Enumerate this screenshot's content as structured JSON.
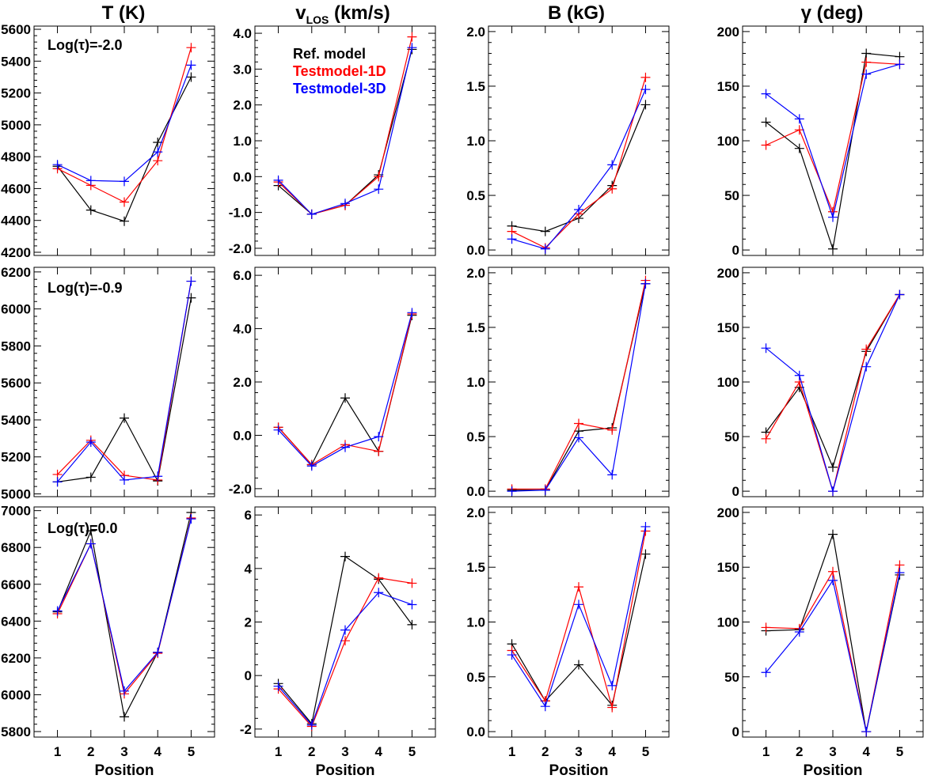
{
  "chart_data": {
    "type": "line",
    "x": [
      1,
      2,
      3,
      4,
      5
    ],
    "xlabel": "Position",
    "xticks": [
      "1",
      "2",
      "3",
      "4",
      "5"
    ],
    "colors": {
      "Ref. model": "#000000",
      "Testmodel-1D": "#ff0000",
      "Testmodel-3D": "#0000ff"
    },
    "legend": [
      "Ref. model",
      "Testmodel-1D",
      "Testmodel-3D"
    ],
    "legend_location": "top-left of row 1, column 2",
    "row_labels": [
      "Log(τ)=-2.0",
      "Log(τ)=-0.9",
      "Log(τ)=0.0"
    ],
    "columns": [
      {
        "title": "T (K)",
        "rows": [
          {
            "ylim": [
              4180,
              5620
            ],
            "yticks": [
              "4200",
              "4400",
              "4600",
              "4800",
              "5000",
              "5200",
              "5400",
              "5600"
            ],
            "ytick_values": [
              4200,
              4400,
              4600,
              4800,
              5000,
              5200,
              5400,
              5600
            ],
            "series": [
              {
                "name": "Ref. model",
                "values": [
                  4740,
                  4465,
                  4395,
                  4890,
                  5300
                ]
              },
              {
                "name": "Testmodel-1D",
                "values": [
                  4725,
                  4620,
                  4515,
                  4775,
                  5485
                ]
              },
              {
                "name": "Testmodel-3D",
                "values": [
                  4750,
                  4650,
                  4645,
                  4830,
                  5375
                ]
              }
            ]
          },
          {
            "ylim": [
              4985,
              6225
            ],
            "yticks": [
              "5000",
              "5200",
              "5400",
              "5600",
              "5800",
              "6000",
              "6200"
            ],
            "ytick_values": [
              5000,
              5200,
              5400,
              5600,
              5800,
              6000,
              6200
            ],
            "series": [
              {
                "name": "Ref. model",
                "values": [
                  5065,
                  5090,
                  5410,
                  5070,
                  6060
                ]
              },
              {
                "name": "Testmodel-1D",
                "values": [
                  5105,
                  5290,
                  5100,
                  5075,
                  6150
                ]
              },
              {
                "name": "Testmodel-3D",
                "values": [
                  5065,
                  5280,
                  5075,
                  5095,
                  6150
                ]
              }
            ]
          },
          {
            "ylim": [
              5770,
              7020
            ],
            "yticks": [
              "5800",
              "6000",
              "6200",
              "6400",
              "6600",
              "6800",
              "7000"
            ],
            "ytick_values": [
              5800,
              6000,
              6200,
              6400,
              6600,
              6800,
              7000
            ],
            "series": [
              {
                "name": "Ref. model",
                "values": [
                  6450,
                  6890,
                  5880,
                  6230,
                  6990
                ]
              },
              {
                "name": "Testmodel-1D",
                "values": [
                  6440,
                  6820,
                  6005,
                  6225,
                  6960
                ]
              },
              {
                "name": "Testmodel-3D",
                "values": [
                  6455,
                  6820,
                  6020,
                  6230,
                  6955
                ]
              }
            ]
          }
        ]
      },
      {
        "title": "v",
        "title_sub": "LOS",
        "title_unit": " (km/s)",
        "rows": [
          {
            "ylim": [
              -2.2,
              4.2
            ],
            "yticks": [
              "-2.0",
              "-1.0",
              "0.0",
              "1.0",
              "2.0",
              "3.0",
              "4.0"
            ],
            "ytick_values": [
              -2,
              -1,
              0,
              1,
              2,
              3,
              4
            ],
            "series": [
              {
                "name": "Ref. model",
                "values": [
                  -0.25,
                  -1.05,
                  -0.8,
                  0.05,
                  3.55
                ]
              },
              {
                "name": "Testmodel-1D",
                "values": [
                  -0.15,
                  -1.05,
                  -0.8,
                  0.0,
                  3.9
                ]
              },
              {
                "name": "Testmodel-3D",
                "values": [
                  -0.1,
                  -1.05,
                  -0.75,
                  -0.35,
                  3.6
                ]
              }
            ]
          },
          {
            "ylim": [
              -2.3,
              6.3
            ],
            "yticks": [
              "-2.0",
              "0.0",
              "2.0",
              "4.0",
              "6.0"
            ],
            "ytick_values": [
              -2,
              0,
              2,
              4,
              6
            ],
            "series": [
              {
                "name": "Ref. model",
                "values": [
                  0.3,
                  -1.1,
                  1.4,
                  -0.6,
                  4.5
                ]
              },
              {
                "name": "Testmodel-1D",
                "values": [
                  0.3,
                  -1.1,
                  -0.35,
                  -0.6,
                  4.55
                ]
              },
              {
                "name": "Testmodel-3D",
                "values": [
                  0.2,
                  -1.15,
                  -0.45,
                  -0.05,
                  4.6
                ]
              }
            ]
          },
          {
            "ylim": [
              -2.3,
              6.3
            ],
            "yticks": [
              "-2",
              "0",
              "2",
              "4",
              "6"
            ],
            "ytick_values": [
              -2,
              0,
              2,
              4,
              6
            ],
            "series": [
              {
                "name": "Ref. model",
                "values": [
                  -0.3,
                  -1.8,
                  4.45,
                  3.6,
                  1.9
                ]
              },
              {
                "name": "Testmodel-1D",
                "values": [
                  -0.5,
                  -1.9,
                  1.3,
                  3.65,
                  3.45
                ]
              },
              {
                "name": "Testmodel-3D",
                "values": [
                  -0.4,
                  -1.85,
                  1.7,
                  3.1,
                  2.65
                ]
              }
            ]
          }
        ]
      },
      {
        "title": "B (kG)",
        "rows": [
          {
            "ylim": [
              -0.05,
              2.05
            ],
            "yticks": [
              "0.0",
              "0.5",
              "1.0",
              "1.5",
              "2.0"
            ],
            "ytick_values": [
              0,
              0.5,
              1,
              1.5,
              2
            ],
            "series": [
              {
                "name": "Ref. model",
                "values": [
                  0.22,
                  0.17,
                  0.29,
                  0.59,
                  1.33
                ]
              },
              {
                "name": "Testmodel-1D",
                "values": [
                  0.17,
                  0.02,
                  0.33,
                  0.56,
                  1.58
                ]
              },
              {
                "name": "Testmodel-3D",
                "values": [
                  0.1,
                  0.01,
                  0.37,
                  0.78,
                  1.47
                ]
              }
            ]
          },
          {
            "ylim": [
              -0.05,
              2.05
            ],
            "yticks": [
              "0.0",
              "0.5",
              "1.0",
              "1.5",
              "2.0"
            ],
            "ytick_values": [
              0,
              0.5,
              1,
              1.5,
              2
            ],
            "series": [
              {
                "name": "Ref. model",
                "values": [
                  0.01,
                  0.01,
                  0.55,
                  0.58,
                  1.9
                ]
              },
              {
                "name": "Testmodel-1D",
                "values": [
                  0.02,
                  0.02,
                  0.62,
                  0.56,
                  1.93
                ]
              },
              {
                "name": "Testmodel-3D",
                "values": [
                  0.0,
                  0.01,
                  0.49,
                  0.15,
                  1.9
                ]
              }
            ]
          },
          {
            "ylim": [
              -0.05,
              2.05
            ],
            "yticks": [
              "0.0",
              "0.5",
              "1.0",
              "1.5",
              "2.0"
            ],
            "ytick_values": [
              0,
              0.5,
              1,
              1.5,
              2
            ],
            "series": [
              {
                "name": "Ref. model",
                "values": [
                  0.8,
                  0.28,
                  0.61,
                  0.24,
                  1.62
                ]
              },
              {
                "name": "Testmodel-1D",
                "values": [
                  0.74,
                  0.28,
                  1.32,
                  0.22,
                  1.83
                ]
              },
              {
                "name": "Testmodel-3D",
                "values": [
                  0.7,
                  0.23,
                  1.16,
                  0.42,
                  1.87
                ]
              }
            ]
          }
        ]
      },
      {
        "title": "γ (deg)",
        "rows": [
          {
            "ylim": [
              -5,
              205
            ],
            "yticks": [
              "0",
              "50",
              "100",
              "150",
              "200"
            ],
            "ytick_values": [
              0,
              50,
              100,
              150,
              200
            ],
            "series": [
              {
                "name": "Ref. model",
                "values": [
                  117,
                  93,
                  1,
                  180,
                  177
                ]
              },
              {
                "name": "Testmodel-1D",
                "values": [
                  96,
                  110,
                  35,
                  172,
                  170
                ]
              },
              {
                "name": "Testmodel-3D",
                "values": [
                  143,
                  120,
                  30,
                  161,
                  170
                ]
              }
            ]
          },
          {
            "ylim": [
              -5,
              205
            ],
            "yticks": [
              "0",
              "50",
              "100",
              "150",
              "200"
            ],
            "ytick_values": [
              0,
              50,
              100,
              150,
              200
            ],
            "series": [
              {
                "name": "Ref. model",
                "values": [
                  54,
                  95,
                  22,
                  128,
                  180
                ]
              },
              {
                "name": "Testmodel-1D",
                "values": [
                  48,
                  100,
                  0,
                  130,
                  180
                ]
              },
              {
                "name": "Testmodel-3D",
                "values": [
                  131,
                  106,
                  0,
                  114,
                  180
                ]
              }
            ]
          },
          {
            "ylim": [
              -5,
              205
            ],
            "yticks": [
              "0",
              "50",
              "100",
              "150",
              "200"
            ],
            "ytick_values": [
              0,
              50,
              100,
              150,
              200
            ],
            "series": [
              {
                "name": "Ref. model",
                "values": [
                  92,
                  93,
                  180,
                  0,
                  143
                ]
              },
              {
                "name": "Testmodel-1D",
                "values": [
                  95,
                  94,
                  146,
                  0,
                  152
                ]
              },
              {
                "name": "Testmodel-3D",
                "values": [
                  54,
                  91,
                  138,
                  0,
                  145
                ]
              }
            ]
          }
        ]
      }
    ]
  }
}
